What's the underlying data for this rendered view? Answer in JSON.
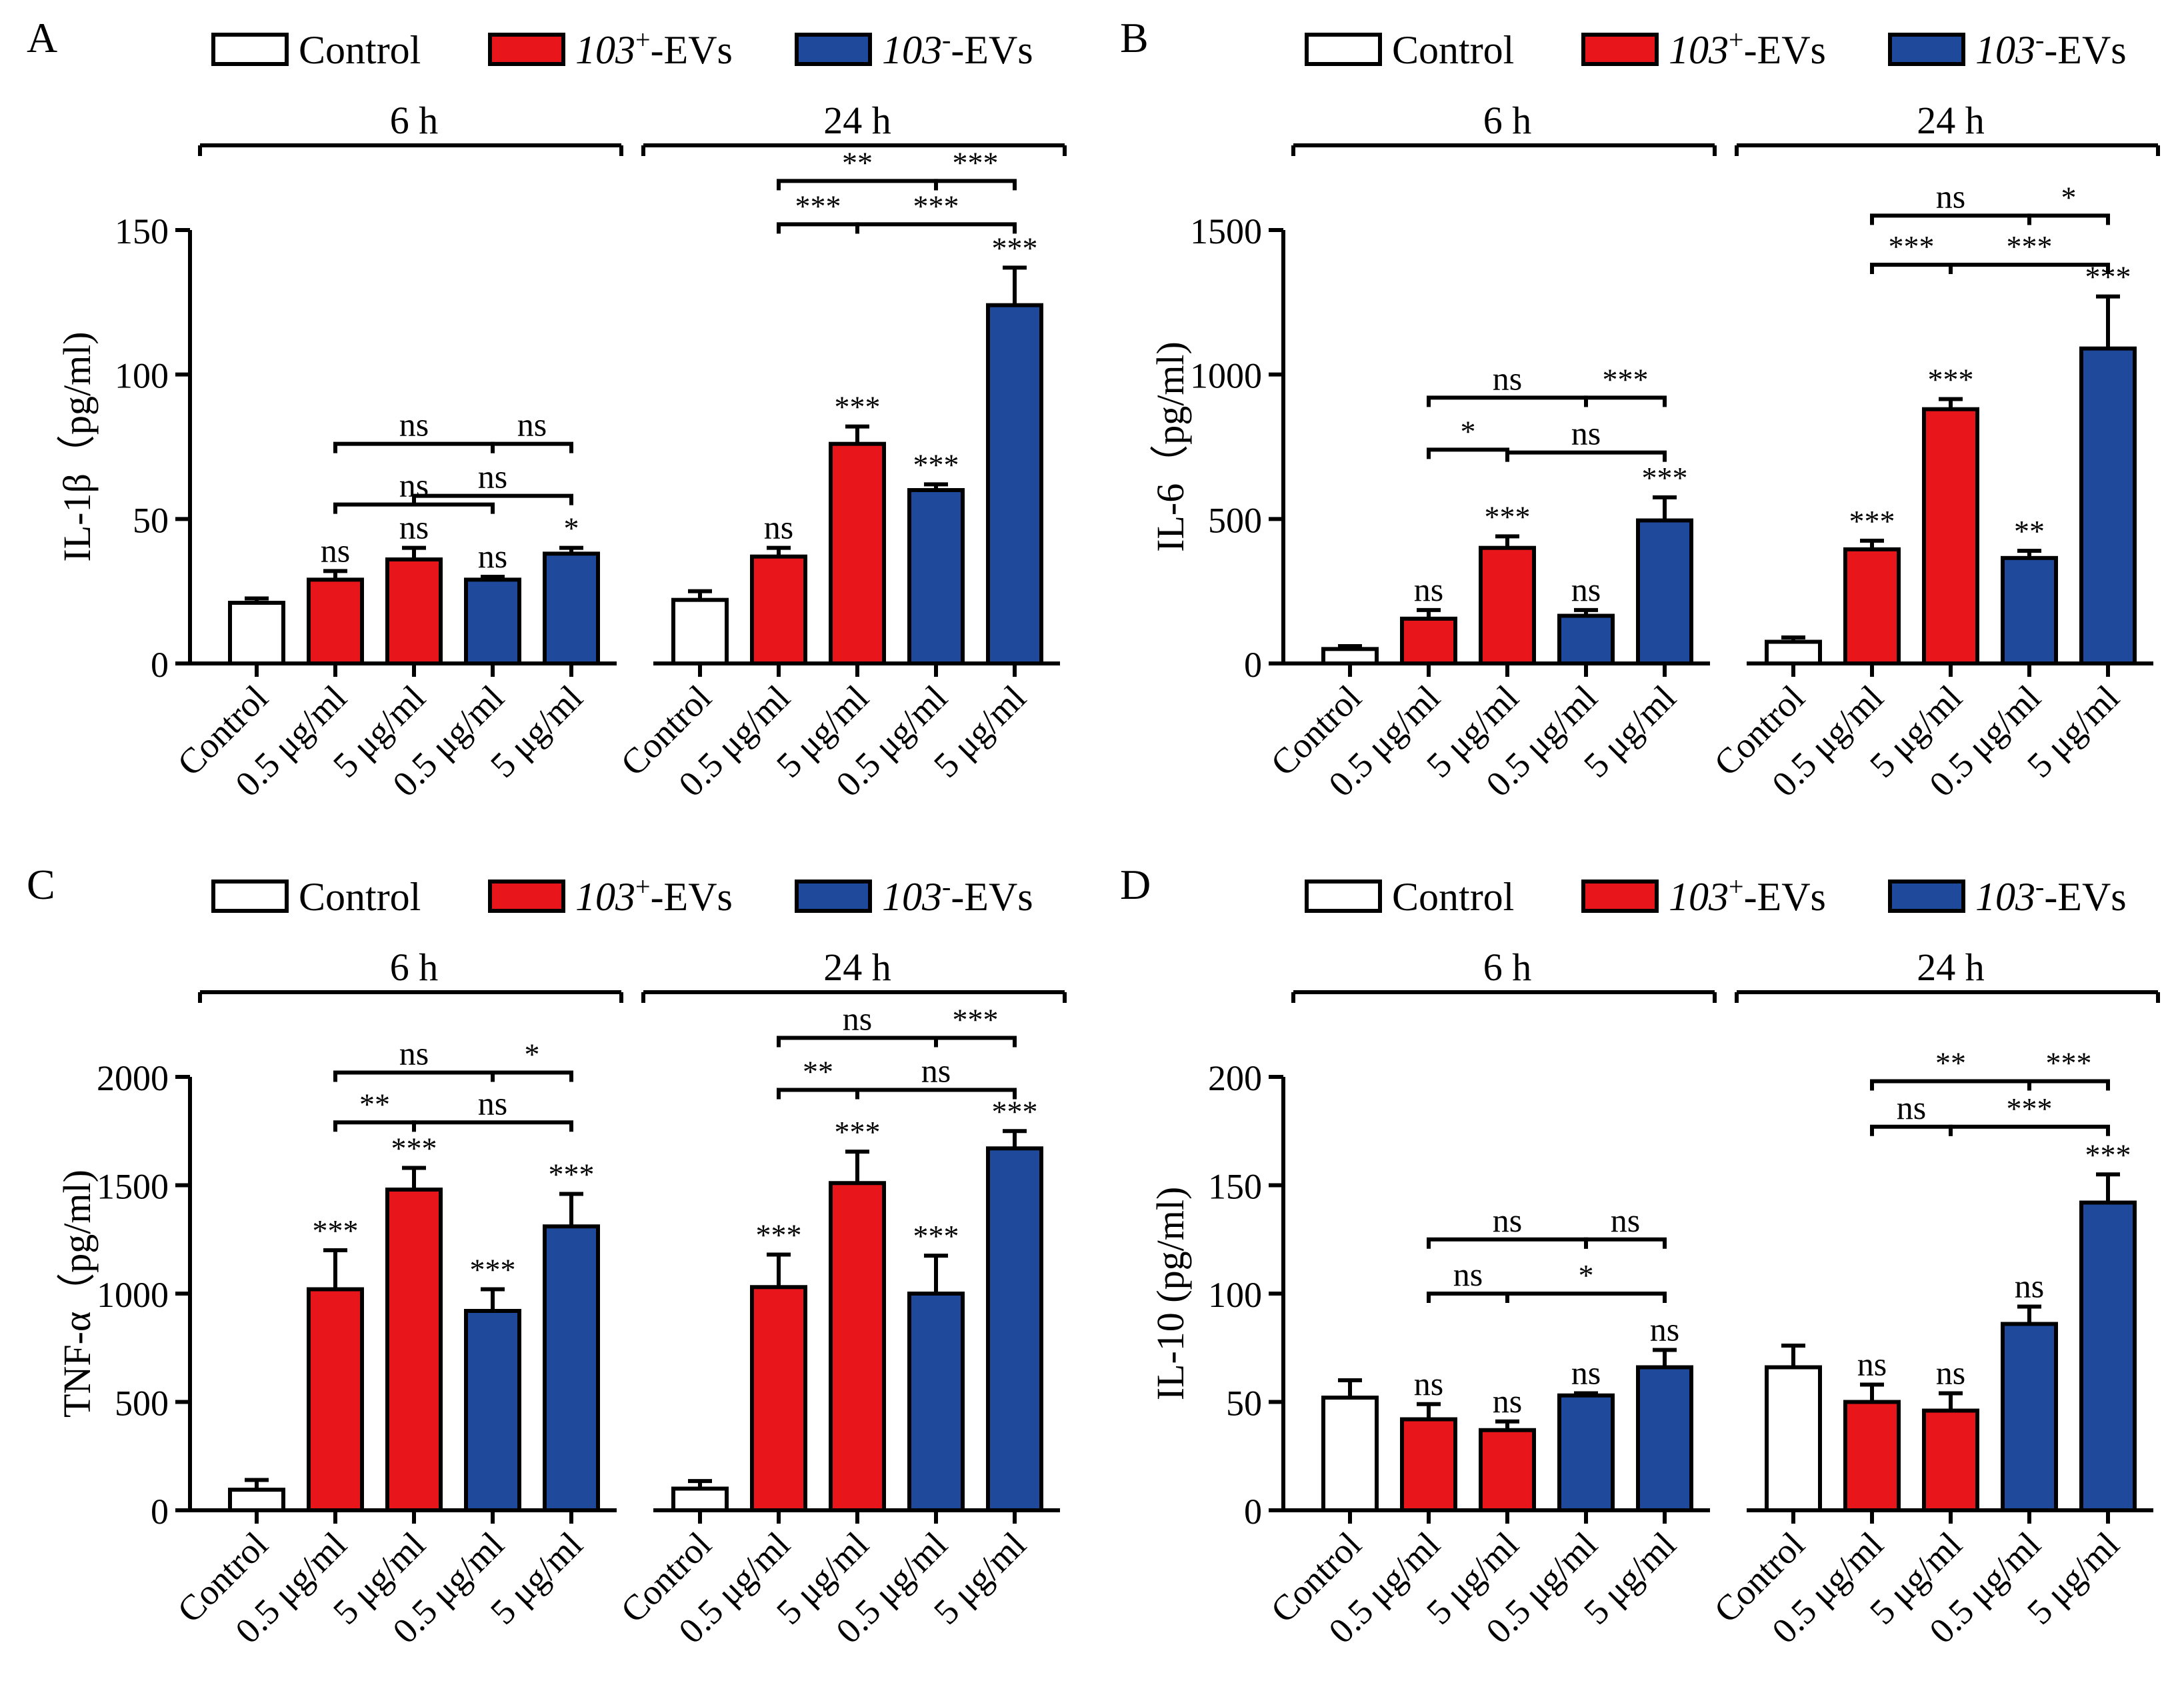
{
  "colors": {
    "control": "#ffffff",
    "pos": "#e8151b",
    "neg": "#1f4a9c"
  },
  "legend": [
    {
      "key": "control",
      "label": "Control",
      "italic": "",
      "sup": "",
      "rest": ""
    },
    {
      "key": "pos",
      "label": "",
      "italic": "103",
      "sup": "+",
      "rest": "-EVs"
    },
    {
      "key": "neg",
      "label": "",
      "italic": "103",
      "sup": "-",
      "rest": "-EVs"
    }
  ],
  "groups": [
    "6 h",
    "24 h"
  ],
  "categories": [
    "Control",
    "0.5 μg/ml",
    "5 μg/ml",
    "0.5 μg/ml",
    "5 μg/ml"
  ],
  "bar_keys": [
    "control",
    "pos",
    "pos",
    "neg",
    "neg"
  ],
  "chart_data": [
    {
      "type": "bar",
      "panel": "A",
      "ylabel": "IL-1β（pg/ml)",
      "ylim": [
        0,
        150
      ],
      "yticks": [
        0,
        50,
        100,
        150
      ],
      "series": [
        {
          "name": "6 h",
          "values": [
            21,
            29,
            36,
            29,
            38
          ],
          "errors": [
            1.5,
            3,
            4,
            1,
            2
          ],
          "labels": [
            "",
            "ns",
            "ns",
            "ns",
            "*"
          ]
        },
        {
          "name": "24 h",
          "values": [
            22,
            37,
            76,
            60,
            124
          ],
          "errors": [
            3,
            3,
            6,
            2,
            13
          ],
          "labels": [
            "",
            "ns",
            "***",
            "***",
            "***"
          ]
        }
      ],
      "brackets": [
        {
          "group": 0,
          "from": 1,
          "to": 3,
          "y": 55,
          "label": "ns"
        },
        {
          "group": 0,
          "from": 2,
          "to": 4,
          "y": 58,
          "label": "ns"
        },
        {
          "group": 0,
          "from": 1,
          "to": 3,
          "y": 76,
          "label": "ns"
        },
        {
          "group": 0,
          "from": 3,
          "to": 4,
          "y": 76,
          "label": "ns"
        },
        {
          "group": 1,
          "from": 1,
          "to": 2,
          "y": 152,
          "label": "***"
        },
        {
          "group": 1,
          "from": 2,
          "to": 4,
          "y": 152,
          "label": "***"
        },
        {
          "group": 1,
          "from": 1,
          "to": 3,
          "y": 167,
          "label": "**"
        },
        {
          "group": 1,
          "from": 3,
          "to": 4,
          "y": 167,
          "label": "***"
        }
      ]
    },
    {
      "type": "bar",
      "panel": "B",
      "ylabel": "IL-6（pg/ml)",
      "ylim": [
        0,
        1500
      ],
      "yticks": [
        0,
        500,
        1000,
        1500
      ],
      "series": [
        {
          "name": "6 h",
          "values": [
            50,
            155,
            400,
            165,
            495
          ],
          "errors": [
            10,
            30,
            40,
            20,
            80
          ],
          "labels": [
            "",
            "ns",
            "***",
            "ns",
            "***"
          ]
        },
        {
          "name": "24 h",
          "values": [
            75,
            395,
            880,
            365,
            1090
          ],
          "errors": [
            15,
            30,
            35,
            25,
            180
          ],
          "labels": [
            "",
            "***",
            "***",
            "**",
            "***"
          ]
        }
      ],
      "brackets": [
        {
          "group": 0,
          "from": 1,
          "to": 2,
          "y": 740,
          "label": "*"
        },
        {
          "group": 0,
          "from": 2,
          "to": 4,
          "y": 730,
          "label": "ns"
        },
        {
          "group": 0,
          "from": 1,
          "to": 3,
          "y": 920,
          "label": "ns"
        },
        {
          "group": 0,
          "from": 3,
          "to": 4,
          "y": 920,
          "label": "***"
        },
        {
          "group": 1,
          "from": 1,
          "to": 2,
          "y": 1380,
          "label": "***"
        },
        {
          "group": 1,
          "from": 2,
          "to": 4,
          "y": 1380,
          "label": "***"
        },
        {
          "group": 1,
          "from": 1,
          "to": 3,
          "y": 1550,
          "label": "ns"
        },
        {
          "group": 1,
          "from": 3,
          "to": 4,
          "y": 1550,
          "label": "*"
        }
      ]
    },
    {
      "type": "bar",
      "panel": "C",
      "ylabel": "TNF-α（pg/ml)",
      "ylim": [
        0,
        2000
      ],
      "yticks": [
        0,
        500,
        1000,
        1500,
        2000
      ],
      "series": [
        {
          "name": "6 h",
          "values": [
            95,
            1020,
            1480,
            920,
            1310
          ],
          "errors": [
            45,
            180,
            100,
            100,
            150
          ],
          "labels": [
            "",
            "***",
            "***",
            "***",
            "***"
          ]
        },
        {
          "name": "24 h",
          "values": [
            100,
            1030,
            1510,
            1000,
            1670
          ],
          "errors": [
            35,
            150,
            145,
            175,
            80
          ],
          "labels": [
            "",
            "***",
            "***",
            "***",
            "***"
          ]
        }
      ],
      "brackets": [
        {
          "group": 0,
          "from": 1,
          "to": 2,
          "y": 1790,
          "label": "**"
        },
        {
          "group": 0,
          "from": 2,
          "to": 4,
          "y": 1790,
          "label": "ns"
        },
        {
          "group": 0,
          "from": 1,
          "to": 3,
          "y": 2020,
          "label": "ns"
        },
        {
          "group": 0,
          "from": 3,
          "to": 4,
          "y": 2020,
          "label": "*"
        },
        {
          "group": 1,
          "from": 1,
          "to": 2,
          "y": 1940,
          "label": "**"
        },
        {
          "group": 1,
          "from": 2,
          "to": 4,
          "y": 1940,
          "label": "ns"
        },
        {
          "group": 1,
          "from": 1,
          "to": 3,
          "y": 2180,
          "label": "ns"
        },
        {
          "group": 1,
          "from": 3,
          "to": 4,
          "y": 2180,
          "label": "***"
        }
      ]
    },
    {
      "type": "bar",
      "panel": "D",
      "ylabel": "IL-10 (pg/ml)",
      "ylim": [
        0,
        200
      ],
      "yticks": [
        0,
        50,
        100,
        150,
        200
      ],
      "series": [
        {
          "name": "6 h",
          "values": [
            52,
            42,
            37,
            53,
            66
          ],
          "errors": [
            8,
            7,
            4,
            1,
            8
          ],
          "labels": [
            "",
            "ns",
            "ns",
            "ns",
            "ns"
          ]
        },
        {
          "name": "24 h",
          "values": [
            66,
            50,
            46,
            86,
            142
          ],
          "errors": [
            10,
            8,
            8,
            8,
            13
          ],
          "labels": [
            "",
            "ns",
            "ns",
            "ns",
            "***"
          ]
        }
      ],
      "brackets": [
        {
          "group": 0,
          "from": 1,
          "to": 2,
          "y": 100,
          "label": "ns"
        },
        {
          "group": 0,
          "from": 2,
          "to": 4,
          "y": 100,
          "label": "*"
        },
        {
          "group": 0,
          "from": 1,
          "to": 3,
          "y": 125,
          "label": "ns"
        },
        {
          "group": 0,
          "from": 3,
          "to": 4,
          "y": 125,
          "label": "ns"
        },
        {
          "group": 1,
          "from": 1,
          "to": 2,
          "y": 177,
          "label": "ns"
        },
        {
          "group": 1,
          "from": 2,
          "to": 4,
          "y": 177,
          "label": "***"
        },
        {
          "group": 1,
          "from": 1,
          "to": 3,
          "y": 198,
          "label": "**"
        },
        {
          "group": 1,
          "from": 3,
          "to": 4,
          "y": 198,
          "label": "***"
        }
      ]
    }
  ]
}
